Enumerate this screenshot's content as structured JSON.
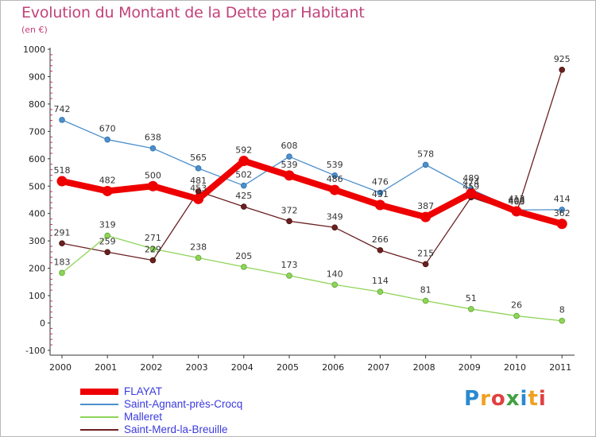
{
  "title": "Evolution du Montant de la Dette par Habitant",
  "subtitle": "(en €)",
  "logo": {
    "text": "Proxiti",
    "colors": [
      "#2a8ad0",
      "#f0a020",
      "#e04040",
      "#40a040",
      "#2a8ad0",
      "#f0a020",
      "#e04040"
    ]
  },
  "chart_data": {
    "type": "line",
    "title": "Evolution du Montant de la Dette par Habitant",
    "subtitle": "(en €)",
    "xlabel": "",
    "ylabel": "",
    "ylim": [
      -100,
      1000
    ],
    "yticks": [
      -100,
      0,
      100,
      200,
      300,
      400,
      500,
      600,
      700,
      800,
      900,
      1000
    ],
    "x": [
      "2000",
      "2001",
      "2002",
      "2003",
      "2004",
      "2005",
      "2006",
      "2007",
      "2008",
      "2009",
      "2010",
      "2011"
    ],
    "grid": false,
    "legend_position": "bottom-left",
    "series": [
      {
        "name": "FLAYAT",
        "color": "#ee0000",
        "values": [
          518,
          482,
          500,
          453,
          592,
          539,
          486,
          431,
          387,
          474,
          408,
          362
        ]
      },
      {
        "name": "Saint-Agnant-près-Crocq",
        "color": "#4c8fcc",
        "values": [
          742,
          670,
          638,
          565,
          502,
          608,
          539,
          476,
          578,
          489,
          413,
          414
        ]
      },
      {
        "name": "Malleret",
        "color": "#8fd458",
        "values": [
          183,
          319,
          271,
          238,
          205,
          173,
          140,
          114,
          81,
          51,
          26,
          8
        ]
      },
      {
        "name": "Saint-Merd-la-Breuille",
        "color": "#6b2020",
        "values": [
          291,
          259,
          229,
          481,
          425,
          372,
          349,
          266,
          215,
          459,
          403,
          925
        ]
      }
    ]
  }
}
